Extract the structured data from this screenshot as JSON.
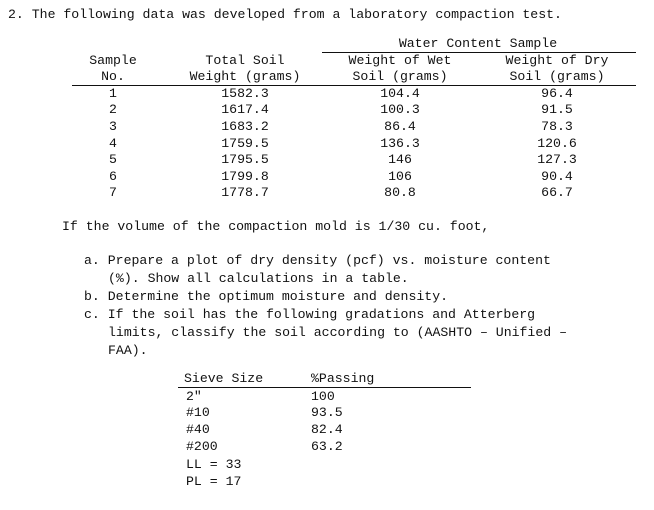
{
  "problem": {
    "title": "2. The following data was developed from a laboratory compaction test.",
    "table": {
      "group_header": "Water Content Sample",
      "headers": [
        [
          "Sample",
          "No."
        ],
        [
          "Total Soil",
          "Weight (grams)"
        ],
        [
          "Weight of Wet",
          "Soil (grams)"
        ],
        [
          "Weight of Dry",
          "Soil (grams)"
        ]
      ],
      "rows": [
        [
          "1",
          "1582.3",
          "104.4",
          "96.4"
        ],
        [
          "2",
          "1617.4",
          "100.3",
          "91.5"
        ],
        [
          "3",
          "1683.2",
          "86.4",
          "78.3"
        ],
        [
          "4",
          "1759.5",
          "136.3",
          "120.6"
        ],
        [
          "5",
          "1795.5",
          "146",
          "127.3"
        ],
        [
          "6",
          "1799.8",
          "106",
          "90.4"
        ],
        [
          "7",
          "1778.7",
          "80.8",
          "66.7"
        ]
      ]
    },
    "volume_text": "If the volume of the compaction mold is 1/30 cu. foot,",
    "parts": {
      "a_line1": "a. Prepare a plot of dry density (pcf) vs. moisture content",
      "a_line2": "(%). Show all calculations in a table.",
      "b_line1": "b. Determine the optimum moisture and density.",
      "c_line1": "c. If the soil has the following gradations and Atterberg",
      "c_line2": "limits, classify the soil according to (AASHTO – Unified –",
      "c_line3": "FAA)."
    },
    "sieve": {
      "headers": [
        "Sieve Size",
        "%Passing"
      ],
      "rows": [
        [
          "2\"",
          "100"
        ],
        [
          "#10",
          "93.5"
        ],
        [
          "#40",
          "82.4"
        ],
        [
          "#200",
          "63.2"
        ]
      ],
      "ll": "LL = 33",
      "pl": "PL = 17"
    }
  }
}
